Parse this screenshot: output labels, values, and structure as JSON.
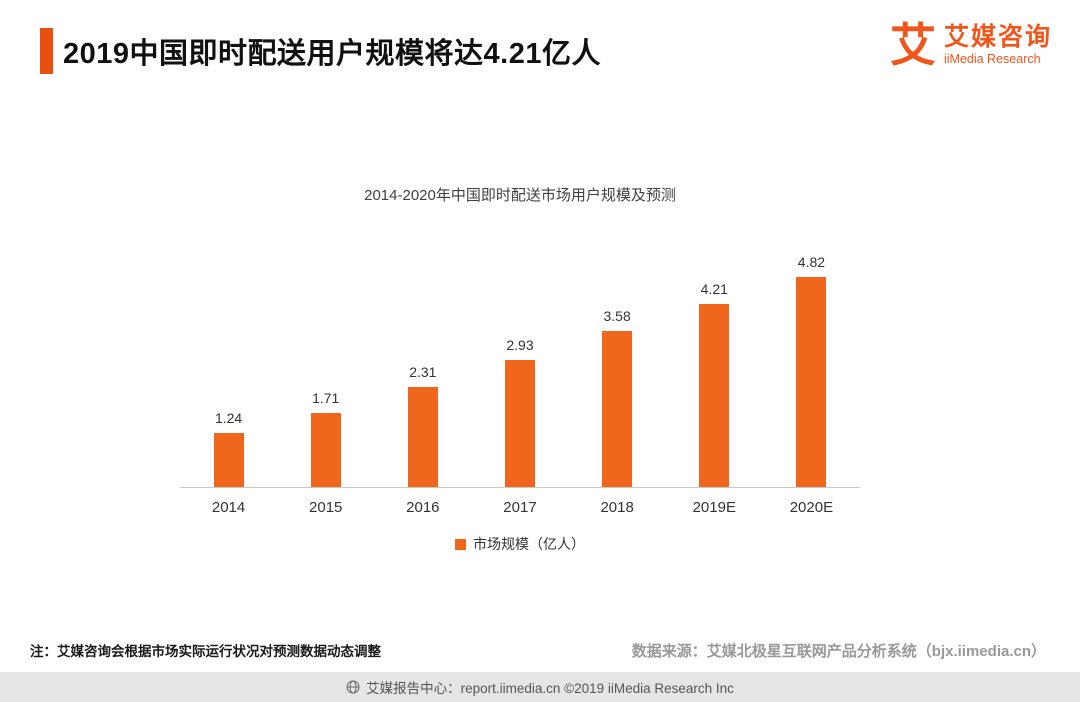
{
  "header": {
    "title": "2019中国即时配送用户规模将达4.21亿人",
    "logo": {
      "logo_char": "艾",
      "brand_cn": "艾媒咨询",
      "brand_en": "iiMedia Research"
    }
  },
  "chart_data": {
    "type": "bar",
    "title": "2014-2020年中国即时配送市场用户规模及预测",
    "categories": [
      "2014",
      "2015",
      "2016",
      "2017",
      "2018",
      "2019E",
      "2020E"
    ],
    "values": [
      1.24,
      1.71,
      2.31,
      2.93,
      3.58,
      4.21,
      4.82
    ],
    "legend": "市场规模（亿人）",
    "xlabel": "",
    "ylabel": "",
    "ylim": [
      0,
      5
    ],
    "grid": false,
    "legend_position": "bottom",
    "bar_color": "#F1661D"
  },
  "footer": {
    "note": "注：艾媒咨询会根据市场实际运行状况对预测数据动态调整",
    "source": "数据来源：艾媒北极星互联网产品分析系统（bjx.iimedia.cn）",
    "bottom_bar": "艾媒报告中心：report.iimedia.cn ©2019 iiMedia Research Inc"
  },
  "colors": {
    "accent": "#E8500F",
    "logo_orange": "#F0551A",
    "bar": "#F1661D",
    "footer_bg": "#E5E5E5",
    "source_text": "#999999"
  }
}
